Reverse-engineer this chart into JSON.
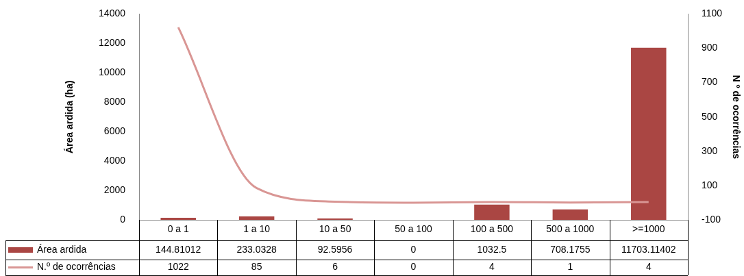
{
  "chart_data": {
    "type": "bar",
    "ylabel": "Área ardida (ha)",
    "y2label": "N º de ocorrências",
    "categories": [
      "0 a 1",
      "1 a 10",
      "10 a 50",
      "50 a 100",
      "100 a 500",
      "500 a 1000",
      ">=1000"
    ],
    "series": [
      {
        "name": "Área ardida",
        "color": "#aa4643",
        "values": [
          144.81012,
          233.0328,
          92.5956,
          0,
          1032.5,
          708.1755,
          11703.11402
        ]
      },
      {
        "name": "N.º de ocorrências",
        "type": "line",
        "axis": "y2",
        "color": "#d99694",
        "values": [
          1022,
          85,
          6,
          0,
          4,
          1,
          4
        ]
      }
    ],
    "ylim": [
      0,
      14000
    ],
    "yticks": [
      0,
      2000,
      4000,
      6000,
      8000,
      10000,
      12000,
      14000
    ],
    "y2lim": [
      -100,
      1100
    ],
    "y2ticks": [
      -100,
      100,
      300,
      500,
      700,
      900,
      1100
    ],
    "grid": false,
    "legend": "bottom",
    "data_labels": true,
    "marker": "none",
    "line_style": "solid"
  }
}
